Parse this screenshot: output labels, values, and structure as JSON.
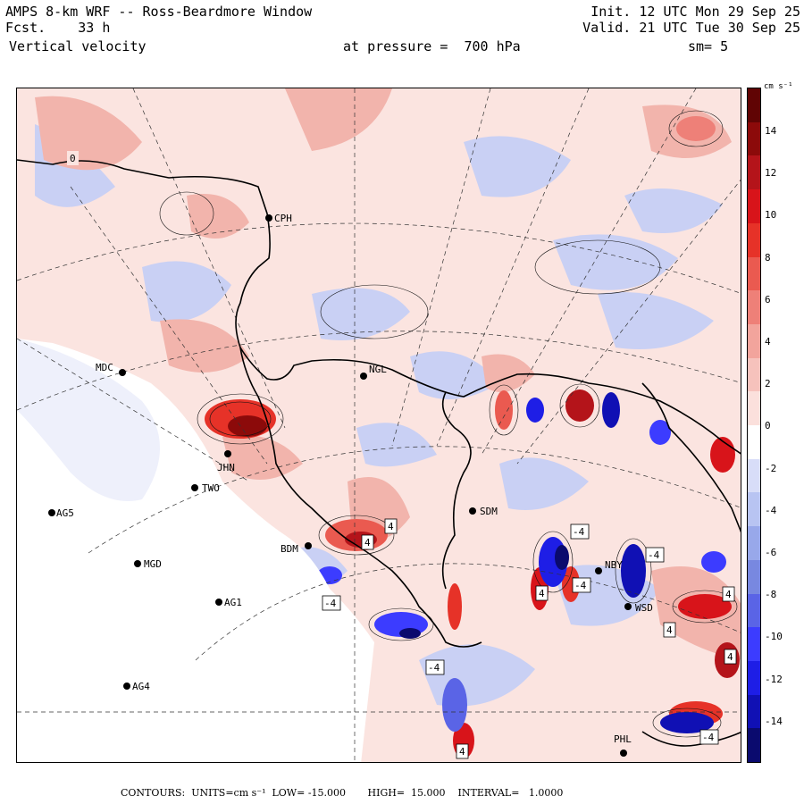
{
  "header": {
    "title": "AMPS 8-km WRF -- Ross-Beardmore Window",
    "forecast": "Fcst.    33 h",
    "variable": "Vertical velocity",
    "pressure": "at pressure =  700 hPa",
    "init": "Init. 12 UTC Mon 29 Sep 25",
    "valid": "Valid. 21 UTC Tue 30 Sep 25",
    "smoothing": "sm= 5"
  },
  "colorbar": {
    "units": "cm s⁻¹",
    "tick_labels": [
      "14",
      "12",
      "10",
      "8",
      "6",
      "4",
      "2",
      "0",
      "-2",
      "-4",
      "-6",
      "-8",
      "-10",
      "-12",
      "-14"
    ],
    "colors": [
      "#0a0a6e",
      "#1010b4",
      "#1e1ee6",
      "#3c3cff",
      "#5a64e6",
      "#7888e0",
      "#98a8ea",
      "#b8c4f2",
      "#d8ddf8",
      "#ffffff",
      "#fbe0dc",
      "#f6c2bc",
      "#f2a49c",
      "#ee8078",
      "#ea5a50",
      "#e63228",
      "#d8141a",
      "#b4141a",
      "#8c0a0a",
      "#600404"
    ]
  },
  "stations": [
    {
      "id": "CPH",
      "label": "CPH"
    },
    {
      "id": "NGL",
      "label": "NGL"
    },
    {
      "id": "MDC",
      "label": "MDC"
    },
    {
      "id": "JHN",
      "label": "JHN"
    },
    {
      "id": "TWO",
      "label": "TWO"
    },
    {
      "id": "AG5",
      "label": "AG5"
    },
    {
      "id": "SDM",
      "label": "SDM"
    },
    {
      "id": "BDM",
      "label": "BDM"
    },
    {
      "id": "MGD",
      "label": "MGD"
    },
    {
      "id": "AG1",
      "label": "AG1"
    },
    {
      "id": "NBY",
      "label": "NBY"
    },
    {
      "id": "WSD",
      "label": "WSD"
    },
    {
      "id": "AG4",
      "label": "AG4"
    },
    {
      "id": "PHL",
      "label": "PHL"
    }
  ],
  "contour_labels": [
    "4",
    "4",
    "-4",
    "-4",
    "-4",
    "4",
    "-4",
    "-4",
    "4",
    "4",
    "4",
    "-4",
    "4",
    "0"
  ],
  "footer": {
    "contours": "CONTOURS:  UNITS=cm s⁻¹  LOW= -15.000",
    "high": "HIGH=  15.000",
    "interval": "INTERVAL=   1.0000"
  }
}
